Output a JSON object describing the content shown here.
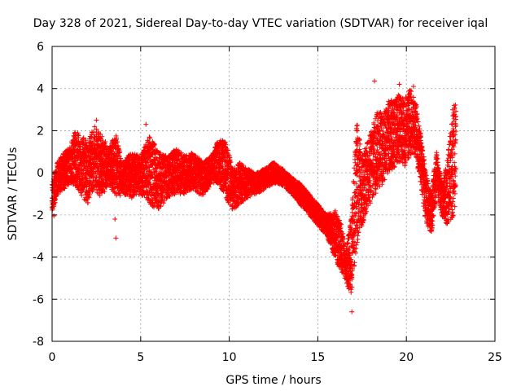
{
  "chart_data": {
    "type": "scatter",
    "title": "Day 328 of 2021, Sidereal Day-to-day VTEC variation (SDTVAR) for receiver iqal",
    "xlabel": "GPS time / hours",
    "ylabel": "SDTVAR / TECUs",
    "xlim": [
      0,
      25
    ],
    "ylim": [
      -8,
      6
    ],
    "x_ticks": [
      0,
      5,
      10,
      15,
      20,
      25
    ],
    "y_ticks": [
      -8,
      -6,
      -4,
      -2,
      0,
      2,
      4,
      6
    ],
    "grid": true,
    "marker": "+",
    "series": [
      {
        "name": "SDTVAR",
        "color": "#ff0000",
        "bands": {
          "hours": [
            0,
            0.3,
            0.7,
            1.0,
            1.3,
            1.6,
            2.0,
            2.4,
            2.8,
            3.2,
            3.6,
            4.0,
            4.5,
            5.0,
            5.5,
            6.0,
            6.5,
            7.0,
            7.5,
            8.0,
            8.5,
            9.0,
            9.4,
            9.8,
            10.2,
            10.6,
            11.0,
            11.5,
            12.0,
            12.5,
            13.0,
            13.5,
            14.0,
            14.5,
            15.0,
            15.5,
            16.0,
            16.3,
            16.6,
            16.9,
            17.2,
            17.5,
            17.8,
            18.1,
            18.4,
            18.7,
            19.0,
            19.3,
            19.6,
            19.9,
            20.2,
            20.5,
            20.8,
            21.1,
            21.4,
            21.7,
            22.0,
            22.3,
            22.6,
            22.8
          ],
          "low": [
            -2.0,
            -1.0,
            -0.8,
            -0.5,
            -0.6,
            -1.0,
            -1.5,
            -0.8,
            -1.2,
            -0.6,
            -1.2,
            -1.0,
            -1.2,
            -1.0,
            -1.5,
            -1.8,
            -1.2,
            -1.0,
            -1.0,
            -0.8,
            -1.2,
            -0.5,
            -0.5,
            -1.2,
            -1.8,
            -1.5,
            -1.2,
            -1.0,
            -0.8,
            -0.5,
            -0.6,
            -1.0,
            -1.5,
            -2.0,
            -2.5,
            -3.0,
            -4.2,
            -4.6,
            -5.2,
            -6.0,
            -3.5,
            -2.5,
            -1.8,
            -1.2,
            -0.8,
            -0.5,
            0.0,
            0.2,
            0.5,
            0.3,
            0.8,
            0.8,
            -0.5,
            -2.5,
            -3.0,
            -1.0,
            -2.0,
            -2.5,
            -2.2,
            -1.5
          ],
          "high": [
            -0.5,
            0.5,
            1.0,
            1.2,
            2.0,
            1.8,
            1.5,
            2.2,
            1.8,
            1.2,
            1.8,
            0.5,
            1.0,
            0.8,
            1.8,
            1.0,
            0.8,
            1.2,
            0.8,
            1.0,
            0.5,
            0.8,
            1.6,
            1.5,
            0.2,
            0.5,
            0.2,
            0.0,
            0.2,
            0.5,
            0.2,
            -0.2,
            -0.5,
            -1.0,
            -1.5,
            -2.0,
            -1.8,
            -2.4,
            -3.6,
            -2.0,
            2.5,
            0.8,
            1.5,
            2.2,
            3.0,
            2.8,
            3.5,
            3.5,
            3.8,
            3.5,
            4.0,
            3.5,
            2.0,
            0.0,
            -1.0,
            1.0,
            -0.5,
            0.5,
            3.0,
            3.4
          ]
        },
        "extreme_points": [
          {
            "x": 16.92,
            "y": -6.6
          },
          {
            "x": 18.2,
            "y": 4.35
          },
          {
            "x": 19.6,
            "y": 4.2
          },
          {
            "x": 20.4,
            "y": 4.1
          },
          {
            "x": 3.6,
            "y": -3.1
          },
          {
            "x": 3.55,
            "y": -2.2
          },
          {
            "x": 5.3,
            "y": 2.3
          },
          {
            "x": 2.5,
            "y": 2.5
          },
          {
            "x": 0.1,
            "y": -2.05
          }
        ]
      }
    ]
  }
}
